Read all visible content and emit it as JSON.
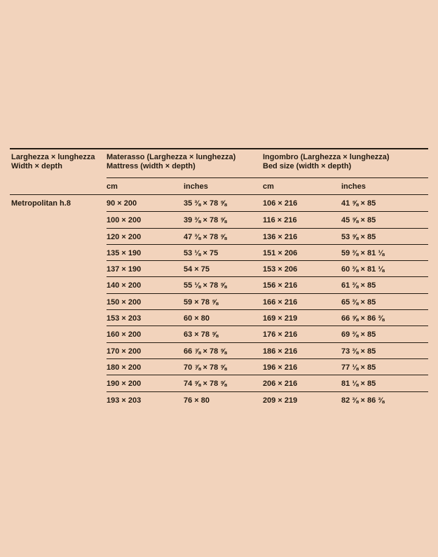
{
  "page": {
    "background_color": "#f2d3bc",
    "text_color": "#241b11"
  },
  "table": {
    "col1_header": [
      "Larghezza × lunghezza",
      "Width × depth"
    ],
    "col2_header": [
      "Materasso (Larghezza × lunghezza)",
      "Mattress (width × depth)"
    ],
    "col3_header": [
      "Ingombro (Larghezza × lunghezza)",
      "Bed size (width × depth)"
    ],
    "unit_headers": [
      "cm",
      "inches",
      "cm",
      "inches"
    ],
    "row_label": "Metropolitan h.8",
    "rows": [
      {
        "mattress_cm": "90 × 200",
        "mattress_in": "35 ⅜ × 78 ⅝",
        "bed_cm": "106 × 216",
        "bed_in": "41 ⅝ × 85"
      },
      {
        "mattress_cm": "100 × 200",
        "mattress_in": "39 ⅜ × 78 ⅝",
        "bed_cm": "116 × 216",
        "bed_in": "45 ⅝ × 85"
      },
      {
        "mattress_cm": "120 × 200",
        "mattress_in": "47 ⅜ × 78 ⅝",
        "bed_cm": "136 × 216",
        "bed_in": "53 ⅝ × 85"
      },
      {
        "mattress_cm": "135 × 190",
        "mattress_in": "53 ⅛ × 75",
        "bed_cm": "151 × 206",
        "bed_in": "59 ⅜ × 81 ⅛"
      },
      {
        "mattress_cm": "137 × 190",
        "mattress_in": "54 × 75",
        "bed_cm": "153 × 206",
        "bed_in": "60 ⅜ × 81 ⅛"
      },
      {
        "mattress_cm": "140 × 200",
        "mattress_in": "55 ⅛ × 78 ⅝",
        "bed_cm": "156 × 216",
        "bed_in": "61 ⅜ × 85"
      },
      {
        "mattress_cm": "150 × 200",
        "mattress_in": "59 × 78 ⅝",
        "bed_cm": "166 × 216",
        "bed_in": "65 ⅜ × 85"
      },
      {
        "mattress_cm": "153 × 203",
        "mattress_in": "60 × 80",
        "bed_cm": "169 × 219",
        "bed_in": "66 ⅝ × 86 ⅜"
      },
      {
        "mattress_cm": "160 × 200",
        "mattress_in": "63 × 78 ⅝",
        "bed_cm": "176 × 216",
        "bed_in": "69 ⅜ × 85"
      },
      {
        "mattress_cm": "170 × 200",
        "mattress_in": "66 ⅞ × 78 ⅝",
        "bed_cm": "186 × 216",
        "bed_in": "73 ⅜ × 85"
      },
      {
        "mattress_cm": "180 × 200",
        "mattress_in": "70 ⅞ × 78 ⅝",
        "bed_cm": "196 × 216",
        "bed_in": "77 ⅛ × 85"
      },
      {
        "mattress_cm": "190 × 200",
        "mattress_in": "74 ⅝ × 78 ⅝",
        "bed_cm": "206 × 216",
        "bed_in": "81 ⅛ × 85"
      },
      {
        "mattress_cm": "193 × 203",
        "mattress_in": "76 × 80",
        "bed_cm": "209 × 219",
        "bed_in": "82 ⅜ × 86 ⅜"
      }
    ]
  }
}
